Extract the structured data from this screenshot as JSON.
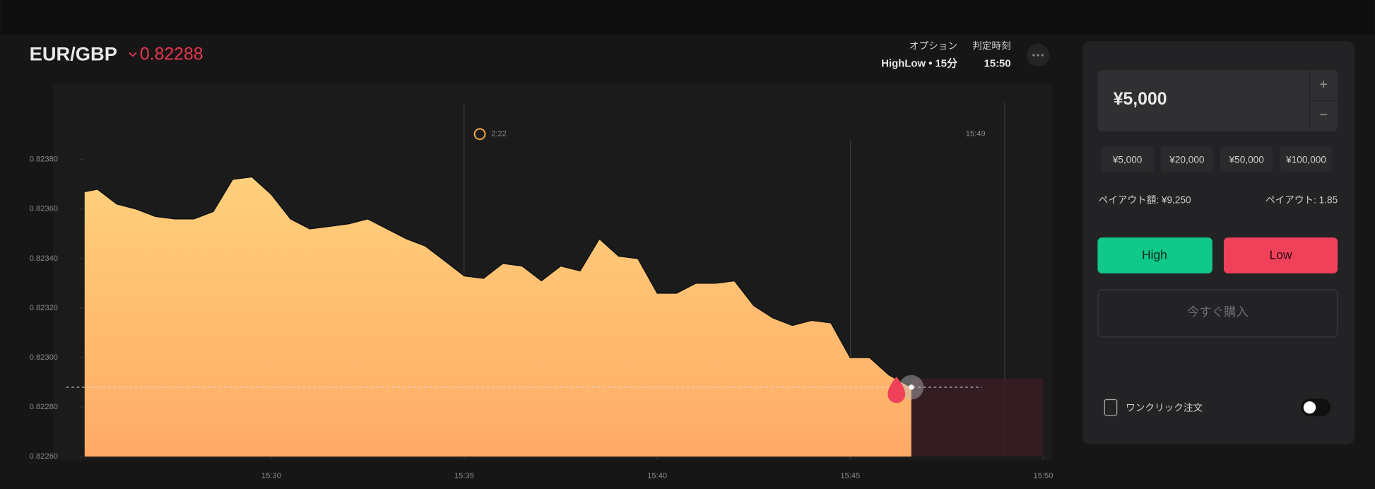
{
  "header": {
    "pair": "EUR/GBP",
    "price": "0.82288",
    "option_label": "オプション",
    "option_value": "HighLow • 15分",
    "expiry_label": "判定時刻",
    "expiry_value": "15:50"
  },
  "chart_data": {
    "type": "area",
    "color": "#ffc878",
    "x": [
      "15:25:10",
      "15:25:30",
      "15:26:00",
      "15:26:30",
      "15:27:00",
      "15:27:30",
      "15:28:00",
      "15:28:30",
      "15:29:00",
      "15:29:30",
      "15:30:00",
      "15:30:30",
      "15:31:00",
      "15:31:30",
      "15:32:00",
      "15:32:30",
      "15:33:00",
      "15:33:30",
      "15:34:00",
      "15:34:30",
      "15:35:00",
      "15:35:30",
      "15:36:00",
      "15:36:30",
      "15:37:00",
      "15:37:30",
      "15:38:00",
      "15:38:30",
      "15:39:00",
      "15:39:30",
      "15:40:00",
      "15:40:30",
      "15:41:00",
      "15:41:30",
      "15:42:00",
      "15:42:30",
      "15:43:00",
      "15:43:30",
      "15:44:00",
      "15:44:30",
      "15:45:00",
      "15:45:30",
      "15:46:00",
      "15:46:35"
    ],
    "values": [
      0.82367,
      0.82368,
      0.82362,
      0.8236,
      0.82357,
      0.82356,
      0.82356,
      0.82359,
      0.82372,
      0.82373,
      0.82366,
      0.82356,
      0.82352,
      0.82353,
      0.82354,
      0.82356,
      0.82352,
      0.82348,
      0.82345,
      0.82339,
      0.82333,
      0.82332,
      0.82338,
      0.82337,
      0.82331,
      0.82337,
      0.82335,
      0.82348,
      0.82341,
      0.8234,
      0.82326,
      0.82326,
      0.8233,
      0.8233,
      0.82331,
      0.82321,
      0.82316,
      0.82313,
      0.82315,
      0.82314,
      0.823,
      0.823,
      0.82293,
      0.82288
    ],
    "xlim": [
      "15:25:10",
      "15:50:00"
    ],
    "xticks": [
      "15:30",
      "15:35",
      "15:40",
      "15:45",
      "15:50"
    ],
    "ylim": [
      0.8226,
      0.824
    ],
    "yticks": [
      {
        "value": 0.8226,
        "label": "0.82260"
      },
      {
        "value": 0.8228,
        "label": "0.82280"
      },
      {
        "value": 0.823,
        "label": "0.82300"
      },
      {
        "value": 0.8232,
        "label": "0.82320"
      },
      {
        "value": 0.8234,
        "label": "0.82340"
      },
      {
        "value": 0.8236,
        "label": "0.82360"
      },
      {
        "value": 0.8238,
        "label": "0.82380"
      }
    ],
    "grid": false,
    "annotations": {
      "countdown": "2:22",
      "deadline": "15:49"
    }
  },
  "panel": {
    "amount": "¥5,000",
    "presets": [
      "¥5,000",
      "¥20,000",
      "¥50,000",
      "¥100,000"
    ],
    "payout_amount": "ペイアウト額: ¥9,250",
    "payout_rate": "ペイアウト: 1.85",
    "high": "High",
    "low": "Low",
    "buy_now": "今すぐ購入",
    "one_click": "ワンクリック注文"
  }
}
